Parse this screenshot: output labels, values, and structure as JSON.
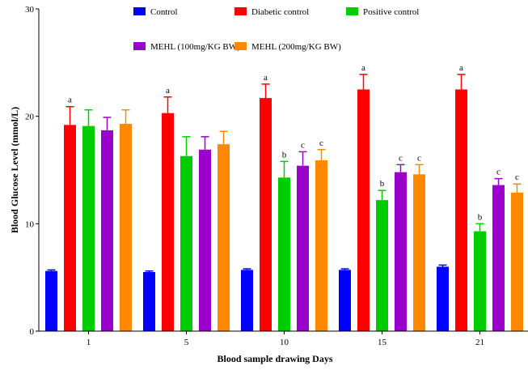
{
  "chart_data": {
    "type": "bar",
    "xlabel": "Blood sample drawing Days",
    "ylabel": "Blood Glucose Level (mmol/L)",
    "ylim": [
      0,
      30
    ],
    "yticks": [
      "0",
      "10",
      "20",
      "30"
    ],
    "categories": [
      "1",
      "5",
      "10",
      "15",
      "21"
    ],
    "legend_position": "top",
    "series": [
      {
        "name": "Control",
        "color": "#0000ff",
        "values": [
          5.6,
          5.5,
          5.7,
          5.7,
          6.0
        ],
        "errors": [
          0.1,
          0.1,
          0.1,
          0.1,
          0.15
        ],
        "labels": [
          "",
          "",
          "",
          "",
          ""
        ]
      },
      {
        "name": "Diabetic control",
        "color": "#ff0000",
        "values": [
          19.2,
          20.3,
          21.7,
          22.5,
          22.5
        ],
        "errors": [
          1.7,
          1.5,
          1.3,
          1.4,
          1.4
        ],
        "labels": [
          "a",
          "a",
          "a",
          "a",
          "a"
        ]
      },
      {
        "name": "Positive control",
        "color": "#00cc00",
        "values": [
          19.1,
          16.3,
          14.3,
          12.2,
          9.3
        ],
        "errors": [
          1.5,
          1.8,
          1.5,
          0.9,
          0.7
        ],
        "labels": [
          "",
          "",
          "b",
          "b",
          "b"
        ]
      },
      {
        "name": "MEHL (100mg/KG BW)",
        "color": "#9900cc",
        "values": [
          18.7,
          16.9,
          15.4,
          14.8,
          13.6
        ],
        "errors": [
          1.2,
          1.2,
          1.3,
          0.7,
          0.6
        ],
        "labels": [
          "",
          "",
          "c",
          "c",
          "c"
        ]
      },
      {
        "name": "MEHL (200mg/KG BW)",
        "color": "#ff8800",
        "values": [
          19.3,
          17.4,
          15.9,
          14.6,
          12.9
        ],
        "errors": [
          1.3,
          1.2,
          1.0,
          0.9,
          0.8
        ],
        "labels": [
          "",
          "",
          "c",
          "c",
          "c"
        ]
      }
    ]
  }
}
